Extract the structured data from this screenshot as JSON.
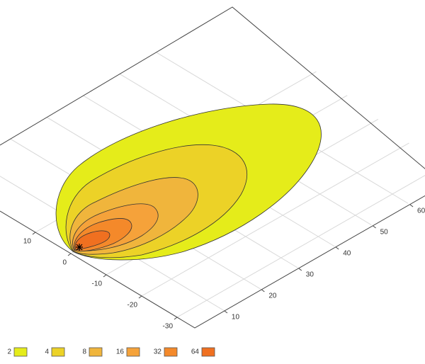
{
  "chart_data": {
    "type": "contour",
    "levels": [
      2,
      4,
      8,
      16,
      32,
      64
    ],
    "colors": [
      "#e5ec1a",
      "#ecd227",
      "#f0b53c",
      "#f5a23a",
      "#f4892a",
      "#f07020"
    ],
    "xlim": [
      2,
      64
    ],
    "xticks": [
      10,
      20,
      30,
      40,
      50,
      60
    ],
    "ylim": [
      -35,
      20
    ],
    "yticks": [
      -30,
      -20,
      -10,
      0,
      10
    ],
    "grid": true
  }
}
